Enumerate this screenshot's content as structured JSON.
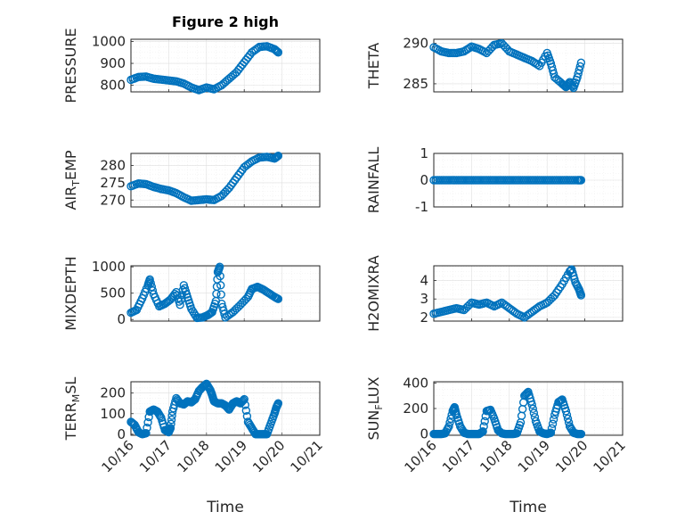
{
  "figure": {
    "title": "Figure 2 high",
    "xlabel": "Time",
    "xticklabels": [
      "10/16",
      "10/17",
      "10/18",
      "10/19",
      "10/20",
      "10/21"
    ],
    "x_range": [
      "10/16",
      "10/21"
    ],
    "marker_color": "#0072BD",
    "marker": "open-circle",
    "grid": true
  },
  "chart_data": [
    {
      "type": "scatter",
      "ylabel": "PRESSURE",
      "ylim": [
        770,
        1010
      ],
      "yticks": [
        800,
        900,
        1000
      ],
      "x_days": [
        0.0,
        0.2,
        0.4,
        0.6,
        0.8,
        1.0,
        1.2,
        1.4,
        1.6,
        1.8,
        2.0,
        2.2,
        2.4,
        2.6,
        2.8,
        3.0,
        3.2,
        3.4,
        3.6,
        3.8,
        3.9
      ],
      "values": [
        825,
        838,
        840,
        830,
        826,
        822,
        818,
        808,
        790,
        778,
        790,
        782,
        800,
        830,
        860,
        905,
        950,
        975,
        978,
        965,
        950
      ]
    },
    {
      "type": "scatter",
      "ylabel": "THETA",
      "ylim": [
        284,
        290.5
      ],
      "yticks": [
        285,
        290
      ],
      "x_days": [
        0.0,
        0.2,
        0.4,
        0.6,
        0.8,
        1.0,
        1.2,
        1.4,
        1.6,
        1.8,
        2.0,
        2.2,
        2.4,
        2.6,
        2.8,
        3.0,
        3.1,
        3.2,
        3.4,
        3.5,
        3.6,
        3.7,
        3.8,
        3.9
      ],
      "values": [
        289.5,
        289.0,
        288.8,
        288.8,
        289.0,
        289.6,
        289.3,
        288.8,
        289.8,
        290.0,
        289.0,
        288.6,
        288.2,
        287.8,
        287.2,
        288.8,
        287.5,
        285.8,
        285.0,
        284.6,
        285.2,
        284.5,
        285.8,
        287.6
      ]
    },
    {
      "type": "scatter",
      "ylabel": "AIR_TEMP",
      "ylim": [
        268,
        283.5
      ],
      "yticks": [
        270,
        275,
        280
      ],
      "x_days": [
        0.0,
        0.2,
        0.4,
        0.6,
        0.8,
        1.0,
        1.2,
        1.4,
        1.6,
        1.8,
        2.0,
        2.2,
        2.4,
        2.6,
        2.8,
        3.0,
        3.2,
        3.4,
        3.6,
        3.8,
        3.9
      ],
      "values": [
        274.0,
        274.8,
        274.6,
        273.8,
        273.2,
        272.8,
        272.0,
        270.8,
        269.8,
        270.0,
        270.2,
        270.0,
        271.2,
        273.5,
        276.5,
        279.5,
        281.2,
        282.3,
        282.5,
        282.0,
        282.8
      ]
    },
    {
      "type": "scatter",
      "ylabel": "RAINFALL",
      "ylim": [
        -1,
        1
      ],
      "yticks": [
        -1,
        0,
        1
      ],
      "x_days": [
        0.0,
        0.2,
        0.4,
        0.6,
        0.8,
        1.0,
        1.2,
        1.4,
        1.6,
        1.8,
        2.0,
        2.2,
        2.4,
        2.6,
        2.8,
        3.0,
        3.2,
        3.4,
        3.6,
        3.8,
        3.9
      ],
      "values": [
        0,
        0,
        0,
        0,
        0,
        0,
        0,
        0,
        0,
        0,
        0,
        0,
        0,
        0,
        0,
        0,
        0,
        0,
        0,
        0,
        0
      ]
    },
    {
      "type": "scatter",
      "ylabel": "MIXDEPTH",
      "ylim": [
        -30,
        1020
      ],
      "yticks": [
        0,
        500,
        1000
      ],
      "x_days": [
        0.0,
        0.15,
        0.3,
        0.45,
        0.5,
        0.6,
        0.75,
        0.9,
        1.05,
        1.2,
        1.3,
        1.4,
        1.5,
        1.6,
        1.75,
        1.9,
        2.05,
        2.15,
        2.25,
        2.3,
        2.35,
        2.4,
        2.5,
        2.7,
        2.9,
        3.1,
        3.2,
        3.35,
        3.5,
        3.65,
        3.8,
        3.9
      ],
      "values": [
        130,
        180,
        400,
        650,
        760,
        480,
        250,
        300,
        380,
        520,
        280,
        650,
        420,
        200,
        30,
        40,
        90,
        140,
        350,
        900,
        1000,
        300,
        40,
        140,
        280,
        430,
        580,
        620,
        570,
        500,
        430,
        390
      ]
    },
    {
      "type": "scatter",
      "ylabel": "H2OMIXRA",
      "ylim": [
        1.8,
        4.8
      ],
      "yticks": [
        2,
        3,
        4
      ],
      "x_days": [
        0.0,
        0.2,
        0.4,
        0.6,
        0.8,
        1.0,
        1.2,
        1.4,
        1.6,
        1.8,
        2.0,
        2.2,
        2.4,
        2.6,
        2.8,
        3.0,
        3.2,
        3.4,
        3.6,
        3.65,
        3.75,
        3.85,
        3.9
      ],
      "values": [
        2.2,
        2.3,
        2.4,
        2.5,
        2.4,
        2.8,
        2.7,
        2.8,
        2.6,
        2.8,
        2.5,
        2.2,
        2.0,
        2.3,
        2.6,
        2.8,
        3.2,
        3.8,
        4.5,
        4.6,
        3.9,
        3.5,
        3.2
      ]
    },
    {
      "type": "scatter",
      "ylabel": "TERR_MSL",
      "ylim": [
        -5,
        255
      ],
      "yticks": [
        0,
        100,
        200
      ],
      "x_days": [
        0.0,
        0.1,
        0.2,
        0.3,
        0.4,
        0.5,
        0.6,
        0.7,
        0.8,
        0.9,
        1.0,
        1.05,
        1.1,
        1.2,
        1.3,
        1.4,
        1.5,
        1.6,
        1.7,
        1.8,
        1.9,
        2.0,
        2.1,
        2.15,
        2.2,
        2.3,
        2.4,
        2.5,
        2.6,
        2.7,
        2.8,
        2.9,
        3.0,
        3.1,
        3.2,
        3.3,
        3.4,
        3.5,
        3.6,
        3.7,
        3.8,
        3.85,
        3.9
      ],
      "values": [
        60,
        45,
        10,
        0,
        5,
        110,
        120,
        110,
        80,
        20,
        10,
        30,
        110,
        175,
        150,
        145,
        160,
        155,
        170,
        210,
        230,
        245,
        215,
        190,
        160,
        150,
        150,
        140,
        120,
        150,
        160,
        150,
        170,
        60,
        30,
        0,
        0,
        0,
        0,
        50,
        100,
        130,
        150
      ]
    },
    {
      "type": "scatter",
      "ylabel": "SUN_FLUX",
      "ylim": [
        -10,
        410
      ],
      "yticks": [
        0,
        200,
        400
      ],
      "x_days": [
        0.0,
        0.1,
        0.2,
        0.3,
        0.4,
        0.5,
        0.55,
        0.6,
        0.7,
        0.8,
        0.9,
        1.0,
        1.1,
        1.2,
        1.3,
        1.4,
        1.5,
        1.6,
        1.7,
        1.8,
        1.9,
        2.0,
        2.1,
        2.2,
        2.3,
        2.4,
        2.5,
        2.6,
        2.7,
        2.8,
        2.9,
        3.0,
        3.1,
        3.2,
        3.3,
        3.4,
        3.5,
        3.6,
        3.7,
        3.8,
        3.9
      ],
      "values": [
        0,
        0,
        0,
        5,
        60,
        180,
        210,
        150,
        60,
        10,
        0,
        0,
        0,
        0,
        20,
        180,
        190,
        120,
        30,
        5,
        0,
        0,
        0,
        5,
        90,
        300,
        330,
        230,
        100,
        20,
        5,
        0,
        10,
        150,
        250,
        270,
        180,
        60,
        10,
        0,
        0
      ]
    }
  ]
}
